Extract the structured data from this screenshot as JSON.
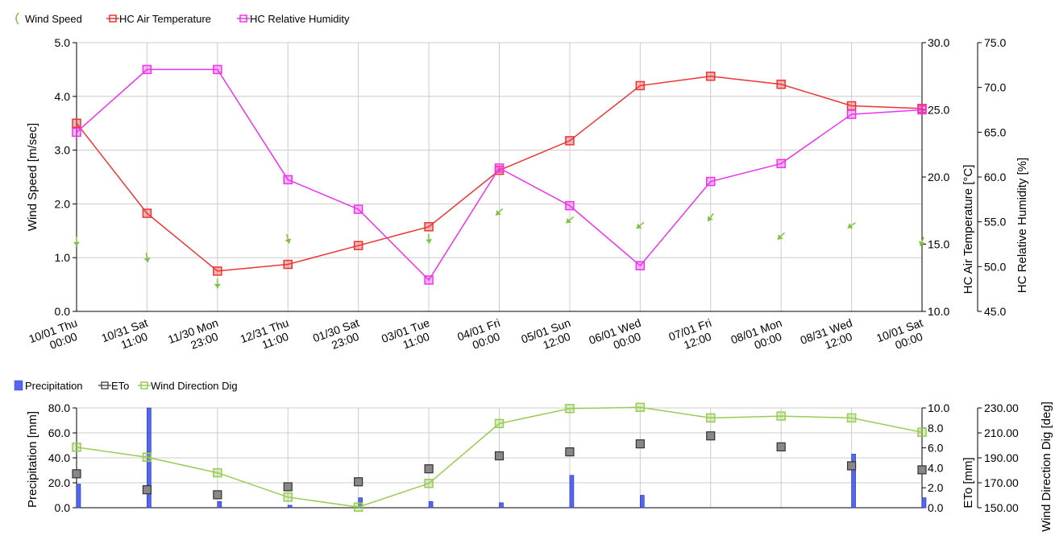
{
  "chart_data": [
    {
      "type": "line",
      "legend_position": "top-left",
      "legend": [
        {
          "label": "Wind Speed",
          "color": "#7dc242",
          "marker": "arrow-icon"
        },
        {
          "label": "HC Air Temperature",
          "color": "#ee3333",
          "marker": "square"
        },
        {
          "label": "HC Relative Humidity",
          "color": "#ee33ee",
          "marker": "square"
        }
      ],
      "categories": [
        "10/01 Thu\n00:00",
        "10/31 Sat\n11:00",
        "11/30 Mon\n23:00",
        "12/31 Thu\n11:00",
        "01/30 Sat\n23:00",
        "03/01 Tue\n11:00",
        "04/01 Fri\n00:00",
        "05/01 Sun\n12:00",
        "06/01 Wed\n00:00",
        "07/01 Fri\n12:00",
        "08/01 Mon\n00:00",
        "08/31 Wed\n12:00",
        "10/01 Sat\n00:00"
      ],
      "axes": {
        "left": {
          "label": "Wind Speed [m/sec]",
          "range": [
            0,
            5
          ],
          "ticks": [
            "0.0",
            "1.0",
            "2.0",
            "3.0",
            "4.0",
            "5.0"
          ]
        },
        "right1": {
          "label": "HC Air Temperature [°C]",
          "range": [
            10,
            30
          ],
          "ticks": [
            "10.0",
            "15.0",
            "20.0",
            "25.0",
            "30.0"
          ]
        },
        "right2": {
          "label": "HC Relative Humidity [%]",
          "range": [
            45,
            75
          ],
          "ticks": [
            "45.0",
            "50.0",
            "55.0",
            "60.0",
            "65.0",
            "70.0",
            "75.0"
          ]
        }
      },
      "grid": true,
      "series": [
        {
          "name": "Wind Speed",
          "axis": "left",
          "style": "arrows",
          "color": "#7dc242",
          "values": [
            1.3,
            1.0,
            0.52,
            1.35,
            null,
            1.35,
            1.85,
            1.7,
            1.6,
            1.75,
            1.4,
            1.6,
            1.3
          ],
          "direction_deg": [
            180,
            170,
            180,
            165,
            null,
            175,
            225,
            230,
            230,
            215,
            225,
            235,
            200
          ]
        },
        {
          "name": "HC Air Temperature",
          "axis": "right1",
          "color": "#ee3333",
          "values": [
            24.0,
            17.3,
            13.0,
            13.5,
            14.9,
            16.3,
            20.5,
            22.7,
            26.8,
            27.5,
            26.9,
            25.3,
            25.1
          ]
        },
        {
          "name": "HC Relative Humidity",
          "axis": "right2",
          "color": "#ee33ee",
          "values": [
            65.0,
            72.0,
            72.0,
            59.7,
            56.4,
            48.5,
            61.0,
            56.8,
            50.1,
            59.5,
            61.5,
            67.0,
            67.5
          ]
        }
      ]
    },
    {
      "type": "bar",
      "legend_position": "top-left",
      "legend": [
        {
          "label": "Precipitation",
          "color": "#5566ee",
          "marker": "bar"
        },
        {
          "label": "ETo",
          "color": "#555555",
          "marker": "square"
        },
        {
          "label": "Wind Direction Dig",
          "color": "#99cc55",
          "marker": "square"
        }
      ],
      "axes": {
        "left": {
          "label": "Precipitation [mm]",
          "range": [
            0,
            80
          ],
          "ticks": [
            "0.0",
            "20.0",
            "40.0",
            "60.0",
            "80.0"
          ]
        },
        "right1": {
          "label": "ETo [mm]",
          "range": [
            0,
            10
          ],
          "ticks": [
            "0.0",
            "2.0",
            "4.0",
            "6.0",
            "8.0",
            "10.0"
          ]
        },
        "right2": {
          "label": "Wind Direction Dig [deg]",
          "range": [
            150,
            230
          ],
          "ticks": [
            "150.00",
            "170.00",
            "190.00",
            "210.00",
            "230.00"
          ]
        }
      },
      "grid": true,
      "series": [
        {
          "name": "Precipitation",
          "axis": "left",
          "type": "bar",
          "color": "#5566ee",
          "values": [
            19,
            80,
            5,
            2,
            8,
            5,
            4,
            26,
            10,
            0,
            0,
            43,
            8
          ]
        },
        {
          "name": "ETo",
          "axis": "right1",
          "type": "scatter",
          "color": "#555555",
          "values": [
            3.4,
            1.8,
            1.3,
            2.1,
            2.6,
            3.9,
            5.2,
            5.6,
            6.4,
            7.2,
            6.1,
            4.2,
            3.8
          ]
        },
        {
          "name": "Wind Direction Dig",
          "axis": "right2",
          "type": "line",
          "color": "#99cc55",
          "values": [
            198.5,
            190.5,
            178.0,
            158.5,
            150.5,
            169.5,
            217.5,
            229.5,
            230.5,
            222.0,
            223.5,
            222.0,
            210.5
          ]
        }
      ]
    }
  ]
}
